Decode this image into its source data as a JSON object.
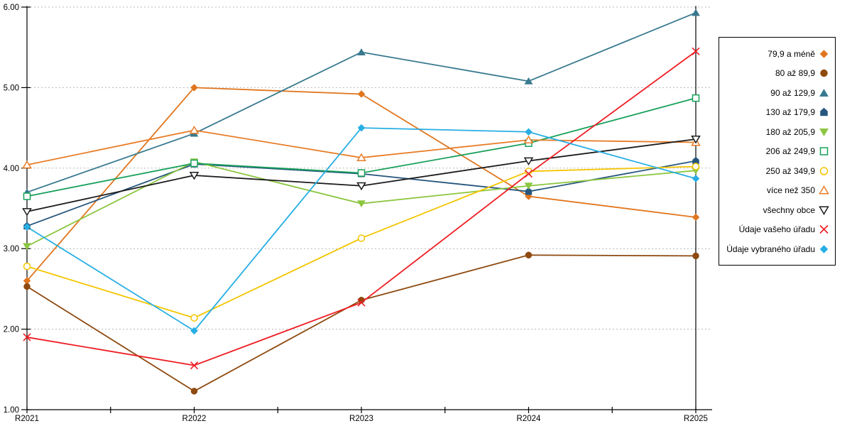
{
  "chart_data": {
    "type": "line",
    "title": "",
    "xlabel": "",
    "ylabel": "",
    "categories": [
      "R2021",
      "R2022",
      "R2023",
      "R2024",
      "R2025"
    ],
    "y_axis": {
      "min": 1,
      "max": 6,
      "tick_labels": [
        "1.00",
        "2.00",
        "3.00",
        "4.00",
        "5.00",
        "6.00"
      ],
      "grid": "dashed-horizontal",
      "grid_color": "#b8b8b8"
    },
    "legend_position": "right-boxed",
    "series": [
      {
        "name": "79,9 a méně",
        "color": "#E0761F",
        "marker": "diamond",
        "filled": true,
        "values": [
          2.6,
          5.0,
          4.92,
          3.65,
          3.39
        ]
      },
      {
        "name": "80 až 89,9",
        "color": "#8E4A10",
        "marker": "circle",
        "filled": true,
        "values": [
          2.53,
          1.23,
          2.36,
          2.92,
          2.91
        ]
      },
      {
        "name": "90 až 129,9",
        "color": "#38798F",
        "marker": "triangle",
        "filled": true,
        "values": [
          3.7,
          4.43,
          5.44,
          5.08,
          5.93
        ]
      },
      {
        "name": "130 až 179,9",
        "color": "#26567D",
        "marker": "pentagon",
        "filled": true,
        "values": [
          3.28,
          4.05,
          3.93,
          3.71,
          4.09
        ]
      },
      {
        "name": "180 až 205,9",
        "color": "#8CC63F",
        "marker": "triangle-down",
        "filled": true,
        "values": [
          3.03,
          4.08,
          3.56,
          3.78,
          3.97
        ]
      },
      {
        "name": "206 až 249,9",
        "color": "#18A15B",
        "marker": "square",
        "filled": false,
        "values": [
          3.65,
          4.06,
          3.94,
          4.31,
          4.87
        ]
      },
      {
        "name": "250 až 349,9",
        "color": "#F4C500",
        "marker": "circle",
        "filled": false,
        "values": [
          2.78,
          2.14,
          3.13,
          3.96,
          4.02
        ]
      },
      {
        "name": "více než 350",
        "color": "#E87D28",
        "marker": "triangle",
        "filled": false,
        "values": [
          4.04,
          4.47,
          4.13,
          4.35,
          4.32
        ]
      },
      {
        "name": "všechny obce",
        "color": "#1C1C1C",
        "marker": "triangle-down",
        "filled": false,
        "values": [
          3.46,
          3.91,
          3.78,
          4.09,
          4.36
        ]
      },
      {
        "name": "Údaje vašeho úřadu",
        "color": "#EE1D23",
        "marker": "x",
        "filled": false,
        "values": [
          1.9,
          1.55,
          2.33,
          3.93,
          5.45
        ]
      },
      {
        "name": "Údaje vybraného úřadu",
        "color": "#27AEE4",
        "marker": "diamond",
        "filled": true,
        "values": [
          3.27,
          1.98,
          4.5,
          4.45,
          3.87
        ]
      }
    ]
  }
}
